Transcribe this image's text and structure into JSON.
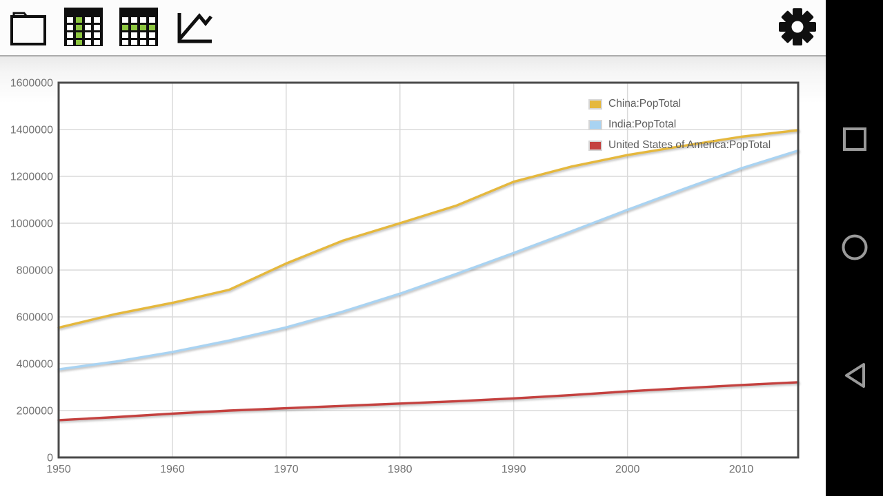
{
  "app": {
    "toolbar": {
      "buttons": [
        {
          "id": "open-file",
          "icon": "folder-icon"
        },
        {
          "id": "table-column-view",
          "icon": "table-column-selected-icon"
        },
        {
          "id": "table-row-view",
          "icon": "table-row-selected-icon"
        },
        {
          "id": "chart-view",
          "icon": "line-chart-icon"
        },
        {
          "id": "settings",
          "icon": "gear-icon"
        }
      ]
    },
    "navigation_bar": {
      "items": [
        {
          "id": "recents",
          "icon": "square-icon"
        },
        {
          "id": "home",
          "icon": "circle-icon"
        },
        {
          "id": "back",
          "icon": "triangle-left-icon"
        }
      ]
    }
  },
  "colors": {
    "china": "#E5B83D",
    "india": "#A9D3F2",
    "usa": "#C4413F",
    "grid": "#DADADA",
    "chart_border": "#4A4A4A",
    "tick_text": "#737373",
    "legend_text": "#5C5C5C",
    "toolbar_icon_green": "#8DC63F",
    "navbar_bg": "#000000",
    "navbar_icon": "#9A9A9A"
  },
  "chart_data": {
    "type": "line",
    "title": "",
    "xlabel": "",
    "ylabel": "",
    "grid": true,
    "legend_position": "top-right",
    "xlim": [
      1950,
      2015
    ],
    "ylim": [
      0,
      1600000
    ],
    "x_ticks": [
      1950,
      1960,
      1970,
      1980,
      1990,
      2000,
      2010
    ],
    "y_ticks": [
      0,
      200000,
      400000,
      600000,
      800000,
      1000000,
      1200000,
      1400000,
      1600000
    ],
    "x": [
      1950,
      1955,
      1960,
      1965,
      1970,
      1975,
      1980,
      1985,
      1990,
      1995,
      2000,
      2005,
      2010,
      2015
    ],
    "series": [
      {
        "name": "China:PopTotal",
        "color_key": "china",
        "values": [
          554000,
          612000,
          660000,
          716000,
          828000,
          926000,
          1000000,
          1076000,
          1177000,
          1241000,
          1291000,
          1331000,
          1369000,
          1397000
        ]
      },
      {
        "name": "India:PopTotal",
        "color_key": "india",
        "values": [
          376000,
          409000,
          450000,
          499000,
          555000,
          623000,
          699000,
          784000,
          873000,
          964000,
          1057000,
          1147000,
          1234000,
          1310000
        ]
      },
      {
        "name": "United States of America:PopTotal",
        "color_key": "usa",
        "values": [
          159000,
          172000,
          187000,
          200000,
          210000,
          220000,
          230000,
          240000,
          252000,
          266000,
          282000,
          296000,
          309000,
          321000
        ]
      }
    ]
  }
}
